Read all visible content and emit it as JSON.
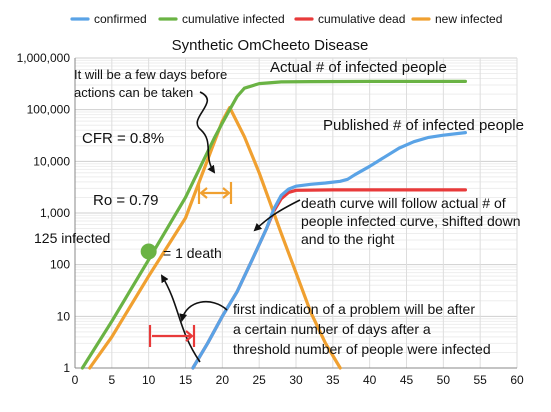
{
  "chart_data": {
    "type": "line",
    "title": "Synthetic OmCheeto Disease",
    "xlabel": "",
    "ylabel": "",
    "xlim": [
      0,
      60
    ],
    "ylim": [
      1,
      1000000
    ],
    "y_scale": "log",
    "grid": true,
    "legend_position": "top",
    "x_ticks": [
      0,
      5,
      10,
      15,
      20,
      25,
      30,
      35,
      40,
      45,
      50,
      55,
      60
    ],
    "x_tick_labels": [
      "0",
      "5",
      "10",
      "15",
      "20",
      "25",
      "30",
      "35",
      "40",
      "45",
      "50",
      "55",
      "60"
    ],
    "y_ticks": [
      1,
      10,
      100,
      1000,
      10000,
      100000,
      1000000
    ],
    "y_tick_labels": [
      "1",
      "10",
      "100",
      "1,000",
      "10,000",
      "100,000",
      "1,000,000"
    ],
    "series": [
      {
        "name": "confirmed",
        "color": "#5aa3e6",
        "x": [
          16,
          18,
          20,
          22,
          24,
          26,
          27,
          28,
          29,
          30,
          32,
          34,
          36,
          37,
          38,
          40,
          42,
          44,
          46,
          48,
          50,
          53
        ],
        "y": [
          1,
          3,
          10,
          30,
          120,
          500,
          1200,
          2200,
          2900,
          3300,
          3600,
          3800,
          4100,
          4500,
          5500,
          8000,
          12000,
          18000,
          24000,
          29000,
          32000,
          36000
        ]
      },
      {
        "name": "cumulative infected",
        "color": "#6ab344",
        "x": [
          1,
          5,
          10,
          15,
          19,
          20,
          21,
          22,
          23,
          25,
          28,
          32,
          40,
          48,
          53
        ],
        "y": [
          1,
          8,
          125,
          2000,
          30000,
          55000,
          100000,
          180000,
          260000,
          320000,
          345000,
          350000,
          352000,
          352000,
          352000
        ]
      },
      {
        "name": "cumulative dead",
        "color": "#e83a3a",
        "x": [
          16,
          18,
          20,
          22,
          24,
          26,
          27,
          28,
          29,
          30,
          35,
          40,
          45,
          50,
          53
        ],
        "y": [
          1,
          3,
          10,
          30,
          120,
          500,
          1100,
          1900,
          2500,
          2750,
          2800,
          2800,
          2800,
          2800,
          2800
        ]
      },
      {
        "name": "new infected",
        "color": "#f0a030",
        "x": [
          2,
          5,
          10,
          15,
          20,
          21,
          23,
          25,
          28,
          30,
          32,
          34,
          36
        ],
        "y": [
          1,
          4,
          60,
          800,
          60000,
          110000,
          30000,
          6000,
          400,
          70,
          12,
          3,
          1
        ]
      }
    ],
    "annotations": {
      "days_before": "It will be a few days before actions can be taken",
      "actual_infected": "Actual # of infected people",
      "published_infected": "Published # of infected people",
      "cfr": "CFR = 0.8%",
      "ro": "Ro = 0.79",
      "infected_125": "125 infected",
      "one_death": "= 1 death",
      "death_curve": "death curve will follow actual # of people infected curve, shifted down and to the right",
      "first_indication": "first indication of a problem will be after a certain number of days after a threshold number of people were infected"
    },
    "marker": {
      "x": 10,
      "y": 180
    }
  }
}
